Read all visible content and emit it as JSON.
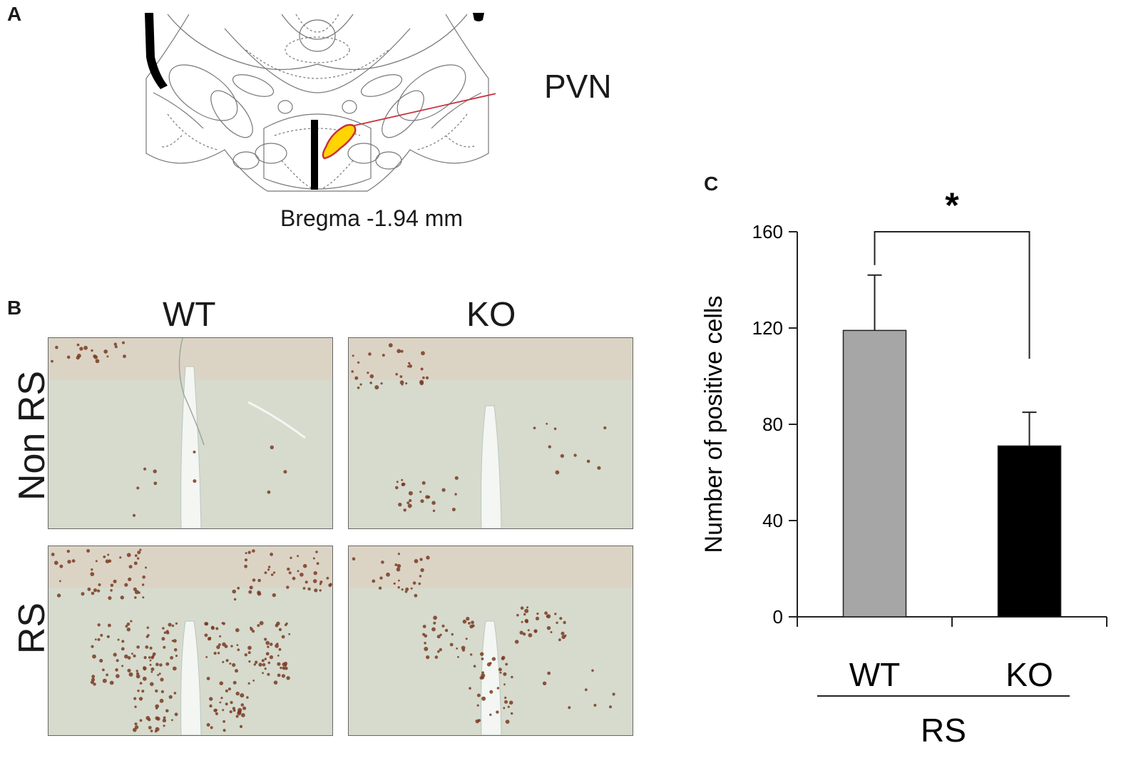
{
  "panels": {
    "a": {
      "letter": "A",
      "region_label": "PVN",
      "bregma_label": "Bregma -1.94 mm"
    },
    "b": {
      "letter": "B",
      "column_labels": [
        "WT",
        "KO"
      ],
      "row_labels": [
        "Non RS",
        "RS"
      ]
    },
    "c": {
      "letter": "C"
    }
  },
  "colors": {
    "pvn_fill": "#ffd400",
    "pvn_pointer": "#c8323c",
    "micrograph_bg": "#d9ddd0",
    "stain": "#7a3a22",
    "bar_wt": "#a6a6a6",
    "bar_ko": "#000000"
  },
  "chart_data": {
    "type": "bar",
    "categories": [
      "WT",
      "KO"
    ],
    "group_label": "RS",
    "values": [
      119,
      71
    ],
    "error": [
      23,
      14
    ],
    "colors": [
      "#a6a6a6",
      "#000000"
    ],
    "ylabel": "Number of positive cells",
    "ylim": [
      0,
      160
    ],
    "yticks": [
      0,
      40,
      80,
      120,
      160
    ],
    "grid": false,
    "significance": {
      "between": [
        "WT",
        "KO"
      ],
      "label": "*"
    }
  }
}
